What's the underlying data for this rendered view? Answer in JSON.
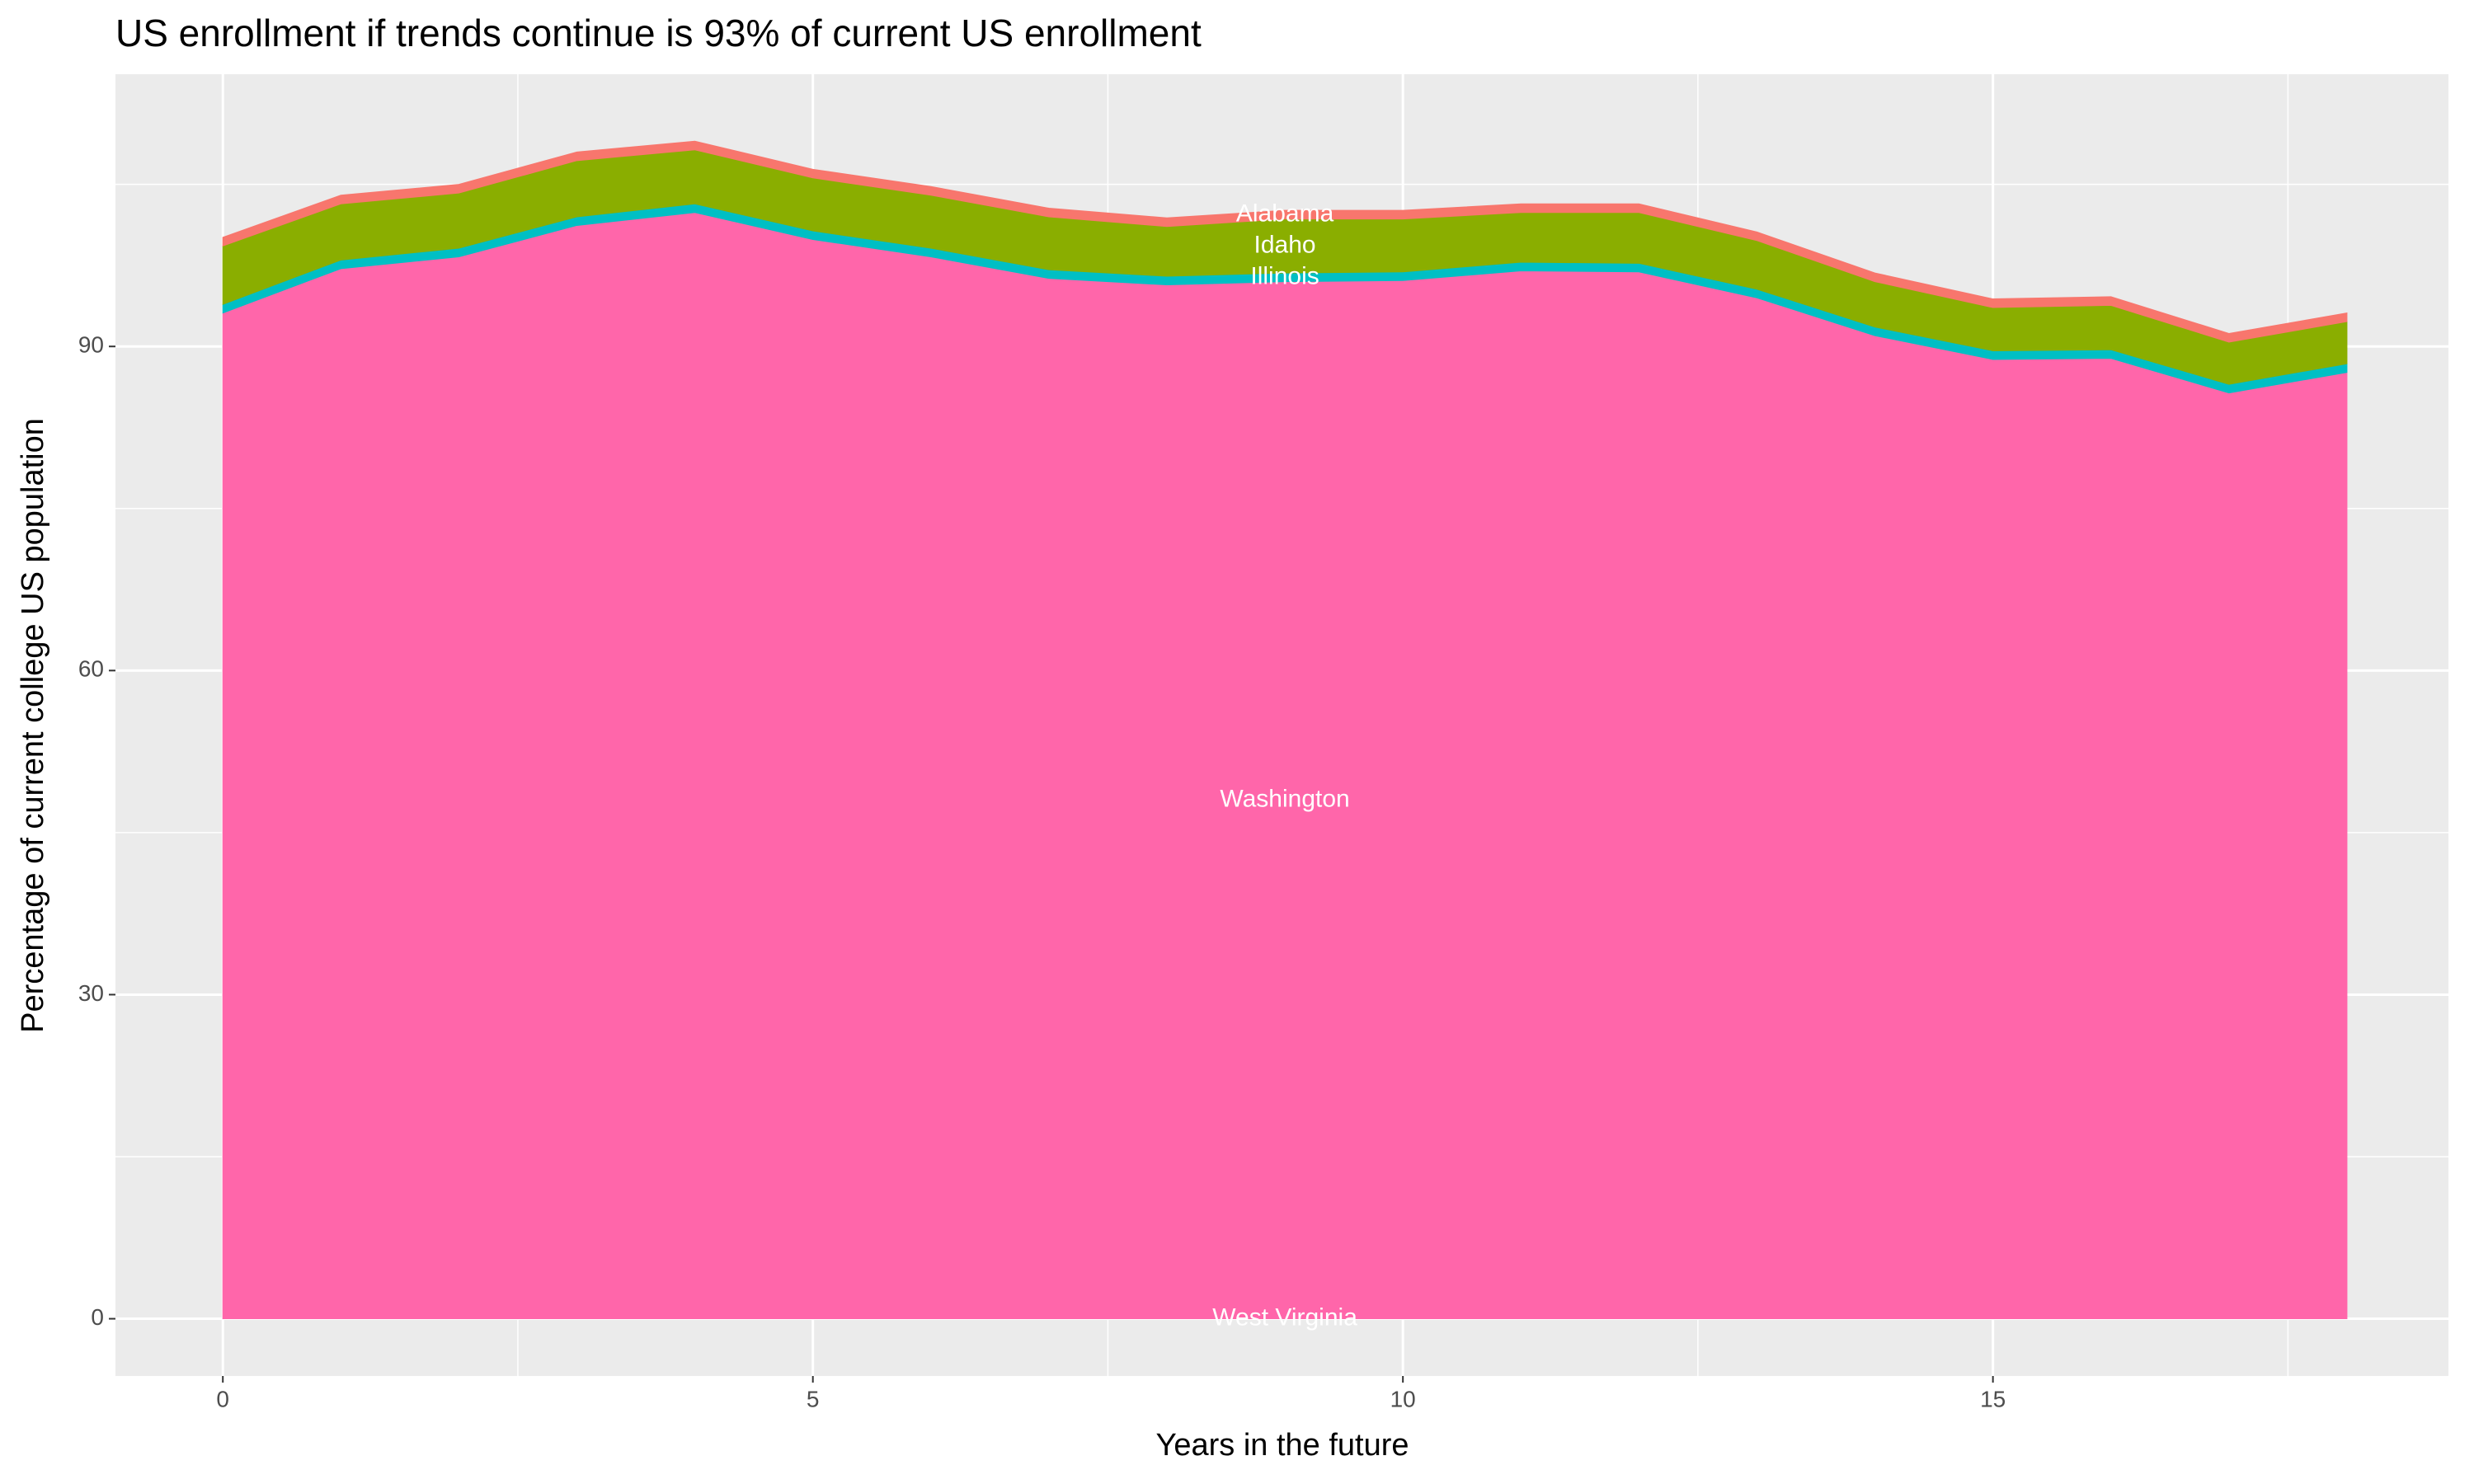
{
  "chart_data": {
    "type": "area",
    "title": "US enrollment if trends continue is 93% of current US enrollment",
    "x_label": "Years in the future",
    "y_label": "Percentage of current college US population",
    "x": [
      0,
      1,
      2,
      3,
      4,
      5,
      6,
      7,
      8,
      9,
      10,
      11,
      12,
      13,
      14,
      15,
      16,
      17,
      18
    ],
    "series": [
      {
        "name": "West Virginia",
        "color": "#FF61C3",
        "values": [
          0,
          0,
          0,
          0,
          0,
          0,
          0,
          0,
          0,
          0,
          0,
          0,
          0,
          0,
          0,
          0,
          0,
          0,
          0
        ]
      },
      {
        "name": "Washington",
        "color": "#FF66AA",
        "values": [
          93.1,
          97.2,
          98.3,
          101.2,
          102.4,
          99.9,
          98.3,
          96.3,
          95.7,
          96.0,
          96.1,
          97.0,
          96.9,
          94.5,
          91.0,
          88.8,
          88.9,
          85.7,
          87.6
        ]
      },
      {
        "name": "Illinois",
        "color": "#00BFC4",
        "values": [
          0.8,
          0.8,
          0.8,
          0.8,
          0.8,
          0.8,
          0.8,
          0.8,
          0.8,
          0.8,
          0.8,
          0.8,
          0.8,
          0.8,
          0.8,
          0.8,
          0.8,
          0.8,
          0.8
        ]
      },
      {
        "name": "Idaho",
        "color": "#8AAE00",
        "values": [
          5.4,
          5.2,
          5.1,
          5.2,
          5.0,
          4.9,
          4.9,
          4.9,
          4.6,
          5.0,
          4.9,
          4.6,
          4.7,
          4.5,
          4.2,
          4.0,
          4.1,
          3.9,
          3.9
        ]
      },
      {
        "name": "Alabama",
        "color": "#F8766D",
        "values": [
          0.8,
          0.8,
          0.8,
          0.8,
          0.8,
          0.8,
          0.8,
          0.8,
          0.8,
          0.8,
          0.8,
          0.8,
          0.8,
          0.8,
          0.8,
          0.8,
          0.8,
          0.8,
          0.8
        ]
      }
    ],
    "xlim": [
      -0.91,
      18.86
    ],
    "ylim": [
      -5.3,
      115.2
    ],
    "xticks": [
      0,
      5,
      10,
      15
    ],
    "yticks": [
      0,
      30,
      60,
      90
    ],
    "grid": true
  }
}
